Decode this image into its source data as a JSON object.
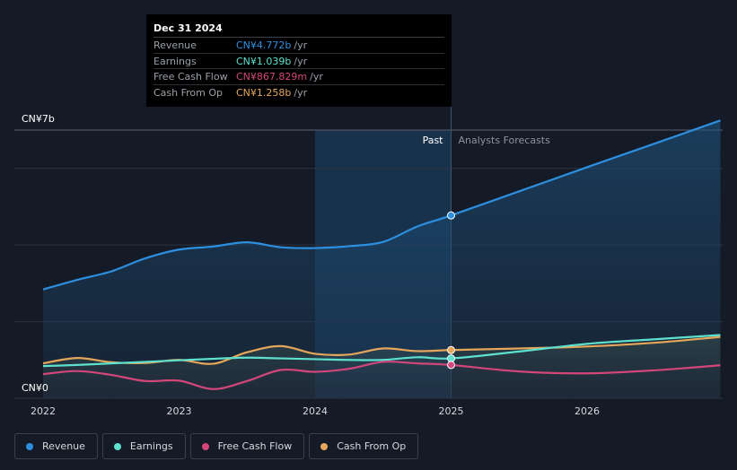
{
  "chart_data": {
    "type": "area",
    "title": "",
    "y_top_label": "CN¥7b",
    "y_bottom_label": "CN¥0",
    "ylim": [
      0,
      7
    ],
    "xlim": [
      2021.8,
      2026.98
    ],
    "x_ticks": [
      {
        "value": 2022,
        "label": "2022"
      },
      {
        "value": 2023,
        "label": "2023"
      },
      {
        "value": 2024,
        "label": "2024"
      },
      {
        "value": 2025,
        "label": "2025"
      },
      {
        "value": 2026,
        "label": "2026"
      }
    ],
    "y_gridlines": [
      0,
      2,
      4,
      6,
      7
    ],
    "past_label": "Past",
    "forecast_label": "Analysts Forecasts",
    "divider_x": 2025.0,
    "highlight_start_x": 2024.0,
    "series": [
      {
        "name": "Revenue",
        "color": "#2d8fe0",
        "fill": true,
        "points": [
          [
            2022.0,
            2.84
          ],
          [
            2022.25,
            3.09
          ],
          [
            2022.5,
            3.31
          ],
          [
            2022.75,
            3.65
          ],
          [
            2023.0,
            3.88
          ],
          [
            2023.25,
            3.96
          ],
          [
            2023.5,
            4.07
          ],
          [
            2023.75,
            3.94
          ],
          [
            2024.0,
            3.92
          ],
          [
            2024.25,
            3.97
          ],
          [
            2024.5,
            4.08
          ],
          [
            2024.75,
            4.48
          ],
          [
            2025.0,
            4.772
          ],
          [
            2025.5,
            5.4
          ],
          [
            2026.0,
            6.03
          ],
          [
            2026.5,
            6.65
          ],
          [
            2026.98,
            7.25
          ]
        ]
      },
      {
        "name": "Earnings",
        "color": "#5ee0cf",
        "fill": false,
        "points": [
          [
            2022.0,
            0.84
          ],
          [
            2022.25,
            0.87
          ],
          [
            2022.5,
            0.91
          ],
          [
            2022.75,
            0.95
          ],
          [
            2023.0,
            0.99
          ],
          [
            2023.25,
            1.03
          ],
          [
            2023.5,
            1.06
          ],
          [
            2023.75,
            1.04
          ],
          [
            2024.0,
            1.02
          ],
          [
            2024.25,
            1.0
          ],
          [
            2024.5,
            1.0
          ],
          [
            2024.75,
            1.07
          ],
          [
            2025.0,
            1.039
          ],
          [
            2025.5,
            1.22
          ],
          [
            2026.0,
            1.42
          ],
          [
            2026.5,
            1.54
          ],
          [
            2026.98,
            1.65
          ]
        ]
      },
      {
        "name": "Free Cash Flow",
        "color": "#d2467a",
        "fill": false,
        "points": [
          [
            2022.0,
            0.63
          ],
          [
            2022.25,
            0.71
          ],
          [
            2022.5,
            0.61
          ],
          [
            2022.75,
            0.45
          ],
          [
            2023.0,
            0.46
          ],
          [
            2023.25,
            0.24
          ],
          [
            2023.5,
            0.45
          ],
          [
            2023.75,
            0.74
          ],
          [
            2024.0,
            0.69
          ],
          [
            2024.25,
            0.77
          ],
          [
            2024.5,
            0.95
          ],
          [
            2024.75,
            0.91
          ],
          [
            2025.0,
            0.868
          ],
          [
            2025.5,
            0.7
          ],
          [
            2026.0,
            0.65
          ],
          [
            2026.5,
            0.73
          ],
          [
            2026.98,
            0.86
          ]
        ]
      },
      {
        "name": "Cash From Op",
        "color": "#e6a65a",
        "fill": false,
        "points": [
          [
            2022.0,
            0.91
          ],
          [
            2022.25,
            1.05
          ],
          [
            2022.5,
            0.94
          ],
          [
            2022.75,
            0.92
          ],
          [
            2023.0,
            1.0
          ],
          [
            2023.25,
            0.9
          ],
          [
            2023.5,
            1.2
          ],
          [
            2023.75,
            1.36
          ],
          [
            2024.0,
            1.16
          ],
          [
            2024.25,
            1.14
          ],
          [
            2024.5,
            1.3
          ],
          [
            2024.75,
            1.23
          ],
          [
            2025.0,
            1.258
          ],
          [
            2025.5,
            1.3
          ],
          [
            2026.0,
            1.35
          ],
          [
            2026.5,
            1.45
          ],
          [
            2026.98,
            1.6
          ]
        ]
      }
    ]
  },
  "tooltip": {
    "date": "Dec 31 2024",
    "rows": [
      {
        "label": "Revenue",
        "value": "CN¥4.772b",
        "unit": "/yr",
        "color": "#2d8fe0"
      },
      {
        "label": "Earnings",
        "value": "CN¥1.039b",
        "unit": "/yr",
        "color": "#5ee0cf"
      },
      {
        "label": "Free Cash Flow",
        "value": "CN¥867.829m",
        "unit": "/yr",
        "color": "#d2467a"
      },
      {
        "label": "Cash From Op",
        "value": "CN¥1.258b",
        "unit": "/yr",
        "color": "#e6a65a"
      }
    ]
  },
  "legend": [
    {
      "label": "Revenue",
      "color": "#2d8fe0"
    },
    {
      "label": "Earnings",
      "color": "#5ee0cf"
    },
    {
      "label": "Free Cash Flow",
      "color": "#d2467a"
    },
    {
      "label": "Cash From Op",
      "color": "#e6a65a"
    }
  ]
}
